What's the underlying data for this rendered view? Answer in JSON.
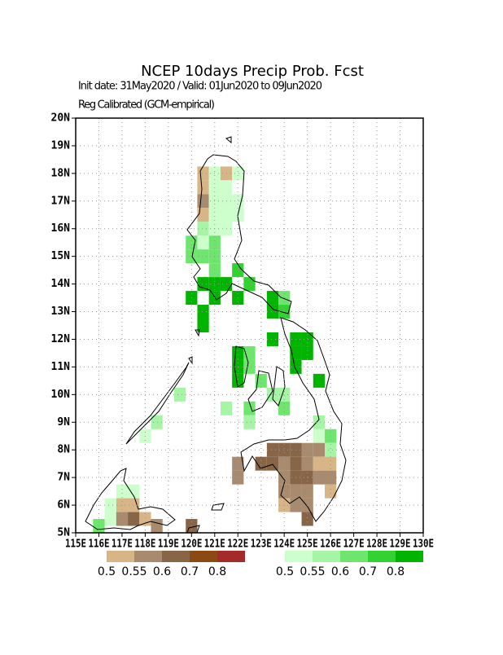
{
  "title": "NCEP 10days Precip Prob. Fcst",
  "subtitle": "Init date: 31May2020 / Valid: 01Jun2020 to 09Jun2020",
  "note": "Reg Calibrated (GCM-empirical)",
  "map": {
    "lon_range": [
      115,
      130
    ],
    "lat_range": [
      5,
      20
    ],
    "cell_size": 0.5,
    "lon_ticks": [
      {
        "value": 115,
        "label": "115E"
      },
      {
        "value": 116,
        "label": "116E"
      },
      {
        "value": 117,
        "label": "117E"
      },
      {
        "value": 118,
        "label": "118E"
      },
      {
        "value": 119,
        "label": "119E"
      },
      {
        "value": 120,
        "label": "120E"
      },
      {
        "value": 121,
        "label": "121E"
      },
      {
        "value": 122,
        "label": "122E"
      },
      {
        "value": 123,
        "label": "123E"
      },
      {
        "value": 124,
        "label": "124E"
      },
      {
        "value": 125,
        "label": "125E"
      },
      {
        "value": 126,
        "label": "126E"
      },
      {
        "value": 127,
        "label": "127E"
      },
      {
        "value": 128,
        "label": "128E"
      },
      {
        "value": 129,
        "label": "129E"
      },
      {
        "value": 130,
        "label": "130E"
      }
    ],
    "lat_ticks": [
      {
        "value": 5,
        "label": "5N"
      },
      {
        "value": 6,
        "label": "6N"
      },
      {
        "value": 7,
        "label": "7N"
      },
      {
        "value": 8,
        "label": "8N"
      },
      {
        "value": 9,
        "label": "9N"
      },
      {
        "value": 10,
        "label": "10N"
      },
      {
        "value": 11,
        "label": "11N"
      },
      {
        "value": 12,
        "label": "12N"
      },
      {
        "value": 13,
        "label": "13N"
      },
      {
        "value": 14,
        "label": "14N"
      },
      {
        "value": 15,
        "label": "15N"
      },
      {
        "value": 16,
        "label": "16N"
      },
      {
        "value": 17,
        "label": "17N"
      },
      {
        "value": 18,
        "label": "18N"
      },
      {
        "value": 19,
        "label": "19N"
      },
      {
        "value": 20,
        "label": "20N"
      }
    ],
    "cells": [
      [
        120.5,
        18,
        "d",
        0
      ],
      [
        121,
        18,
        "w",
        0
      ],
      [
        121.5,
        18,
        "d",
        0
      ],
      [
        122,
        18,
        "w",
        0
      ],
      [
        120.5,
        17.5,
        "d",
        0
      ],
      [
        121,
        17.5,
        "w",
        0
      ],
      [
        121.5,
        17.5,
        "w",
        0
      ],
      [
        120.5,
        17,
        "d",
        1
      ],
      [
        121,
        17,
        "w",
        0
      ],
      [
        121.5,
        17,
        "w",
        0
      ],
      [
        122,
        17,
        "w",
        0
      ],
      [
        120.5,
        16.5,
        "d",
        0
      ],
      [
        121,
        16.5,
        "w",
        0
      ],
      [
        121.5,
        16.5,
        "w",
        0
      ],
      [
        122,
        16.5,
        "w",
        0
      ],
      [
        120.5,
        16,
        "w",
        1
      ],
      [
        121,
        16,
        "w",
        0
      ],
      [
        121.5,
        16,
        "w",
        0
      ],
      [
        120,
        15.5,
        "w",
        2
      ],
      [
        120.5,
        15.5,
        "w",
        0
      ],
      [
        121,
        15.5,
        "w",
        2
      ],
      [
        120,
        15,
        "w",
        2
      ],
      [
        120.5,
        15,
        "w",
        2
      ],
      [
        121,
        15,
        "w",
        2
      ],
      [
        121,
        14.5,
        "w",
        2
      ],
      [
        122,
        14.5,
        "w",
        3
      ],
      [
        120.5,
        14,
        "w",
        4
      ],
      [
        121,
        14,
        "w",
        4
      ],
      [
        121.5,
        14,
        "w",
        4
      ],
      [
        122.5,
        14,
        "w",
        3
      ],
      [
        120,
        13.5,
        "w",
        4
      ],
      [
        121,
        13.5,
        "w",
        4
      ],
      [
        122,
        13.5,
        "w",
        4
      ],
      [
        123.5,
        13.5,
        "w",
        4
      ],
      [
        124,
        13.5,
        "w",
        2
      ],
      [
        120.5,
        13,
        "w",
        4
      ],
      [
        123.5,
        13,
        "w",
        4
      ],
      [
        124,
        13,
        "w",
        3
      ],
      [
        120.5,
        12.5,
        "w",
        4
      ],
      [
        123.5,
        12,
        "w",
        4
      ],
      [
        124.5,
        12,
        "w",
        4
      ],
      [
        125,
        12,
        "w",
        4
      ],
      [
        122,
        11.5,
        "w",
        4
      ],
      [
        122.5,
        11.5,
        "w",
        2
      ],
      [
        124.5,
        11.5,
        "w",
        4
      ],
      [
        125,
        11.5,
        "w",
        4
      ],
      [
        122,
        11,
        "w",
        4
      ],
      [
        122.5,
        11,
        "w",
        2
      ],
      [
        124.5,
        11,
        "w",
        4
      ],
      [
        122,
        10.5,
        "w",
        4
      ],
      [
        123,
        10.5,
        "w",
        2
      ],
      [
        125.5,
        10.5,
        "w",
        4
      ],
      [
        123.5,
        10,
        "w",
        1
      ],
      [
        124,
        10,
        "w",
        1
      ],
      [
        121.5,
        9.5,
        "w",
        1
      ],
      [
        122.5,
        9.5,
        "w",
        2
      ],
      [
        124,
        9.5,
        "w",
        2
      ],
      [
        122.5,
        9,
        "w",
        1
      ],
      [
        125.5,
        9,
        "w",
        1
      ],
      [
        125.5,
        8.5,
        "w",
        0
      ],
      [
        126,
        8.5,
        "w",
        2
      ],
      [
        123.5,
        8,
        "d",
        2
      ],
      [
        124,
        8,
        "d",
        2
      ],
      [
        124.5,
        8,
        "d",
        2
      ],
      [
        125,
        8,
        "d",
        1
      ],
      [
        125.5,
        8,
        "d",
        1
      ],
      [
        126,
        8,
        "w",
        1
      ],
      [
        122,
        7.5,
        "d",
        1
      ],
      [
        123,
        7.5,
        "d",
        2
      ],
      [
        123.5,
        7.5,
        "d",
        2
      ],
      [
        124,
        7.5,
        "d",
        1
      ],
      [
        124.5,
        7.5,
        "d",
        2
      ],
      [
        125,
        7.5,
        "d",
        1
      ],
      [
        125.5,
        7.5,
        "d",
        0
      ],
      [
        126,
        7.5,
        "d",
        0
      ],
      [
        122,
        7,
        "d",
        1
      ],
      [
        124,
        7,
        "d",
        1
      ],
      [
        124.5,
        7,
        "d",
        2
      ],
      [
        125,
        7,
        "d",
        2
      ],
      [
        125.5,
        7,
        "d",
        1
      ],
      [
        126,
        7,
        "d",
        1
      ],
      [
        124,
        6.5,
        "d",
        1
      ],
      [
        124.5,
        6.5,
        "d",
        1
      ],
      [
        125,
        6.5,
        "d",
        1
      ],
      [
        126,
        6.5,
        "d",
        0
      ],
      [
        124,
        6,
        "d",
        0
      ],
      [
        124.5,
        6,
        "d",
        1
      ],
      [
        125,
        6,
        "d",
        1
      ],
      [
        125,
        5.5,
        "d",
        2
      ],
      [
        118.5,
        9,
        "w",
        1
      ],
      [
        118,
        8.5,
        "w",
        0
      ],
      [
        119.5,
        10,
        "w",
        1
      ],
      [
        117,
        6.5,
        "w",
        0
      ],
      [
        117.5,
        6.5,
        "w",
        0
      ],
      [
        117,
        6,
        "d",
        0
      ],
      [
        117.5,
        6,
        "d",
        0
      ],
      [
        116.5,
        6,
        "w",
        0
      ],
      [
        116.5,
        5.5,
        "w",
        0
      ],
      [
        117,
        5.5,
        "d",
        1
      ],
      [
        117.5,
        5.5,
        "d",
        2
      ],
      [
        118,
        5.5,
        "d",
        0
      ],
      [
        116,
        5.25,
        "w",
        2
      ],
      [
        120,
        5.25,
        "d",
        2
      ],
      [
        118.5,
        5.25,
        "d",
        1
      ]
    ]
  },
  "dry_legend": {
    "colors": [
      "#d8b586",
      "#a88a6e",
      "#896548",
      "#8b4a14",
      "#a52a2a"
    ],
    "labels": [
      "0.5",
      "0.55",
      "0.6",
      "0.7",
      "0.8"
    ]
  },
  "wet_legend": {
    "colors": [
      "#ccffcc",
      "#a6f5a6",
      "#6ee66e",
      "#32d232",
      "#00b400"
    ],
    "labels": [
      "0.5",
      "0.55",
      "0.6",
      "0.7",
      "0.8"
    ]
  }
}
